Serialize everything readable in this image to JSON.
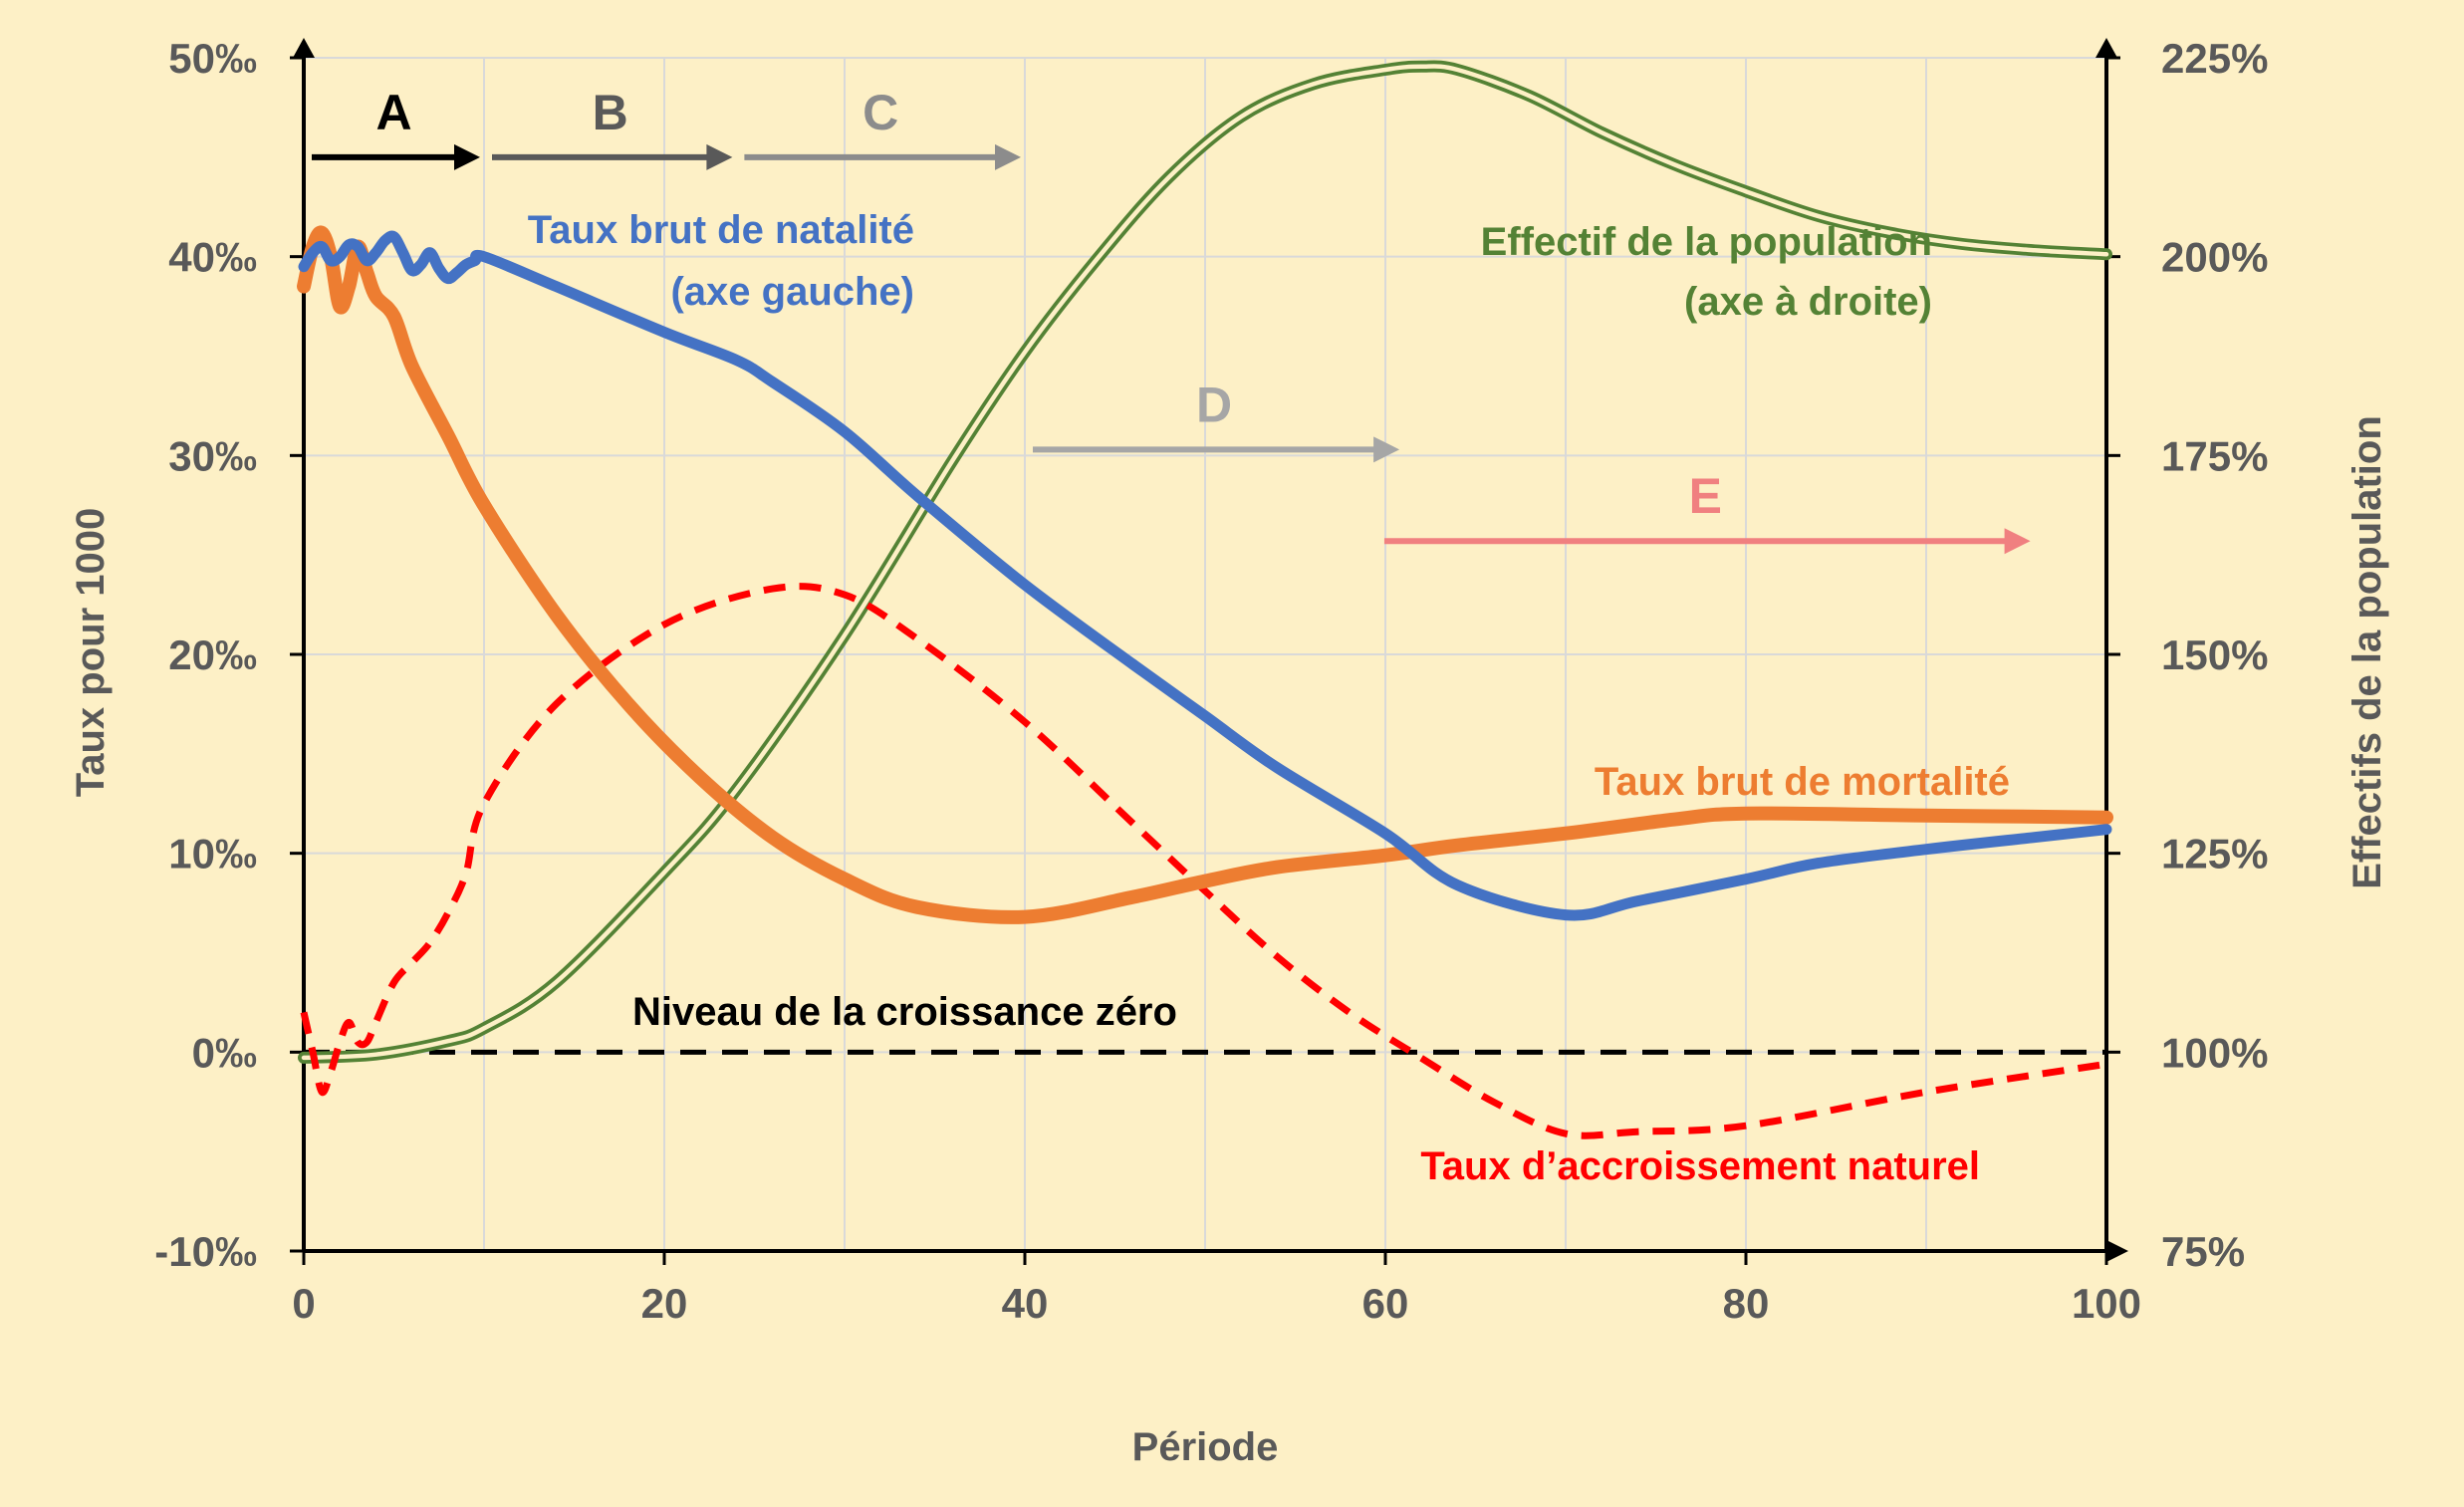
{
  "chart_data": {
    "type": "line",
    "xlabel": "Période",
    "ylabel_left": "Taux pour 1000",
    "ylabel_right": "Effectifs de la population",
    "xlim": [
      0,
      100
    ],
    "ylim_left": [
      -10,
      50
    ],
    "ylim_right": [
      75,
      225
    ],
    "x_ticks": [
      "0",
      "20",
      "40",
      "60",
      "80",
      "100"
    ],
    "y_ticks_left": [
      "-10‰",
      "0‰",
      "10‰",
      "20‰",
      "30‰",
      "40‰",
      "50‰"
    ],
    "y_ticks_right": [
      "75%",
      "100%",
      "125%",
      "150%",
      "175%",
      "200%",
      "225%"
    ],
    "grid": true,
    "colors": {
      "background": "#fdf0c6",
      "natalite": "#4472c4",
      "mortalite": "#ed7d31",
      "accroissement": "#ff0000",
      "population": "#548235",
      "axis_text": "#595959",
      "grid": "#d9d9d9"
    },
    "series": [
      {
        "key": "natalite",
        "name": "Taux brut de natalité",
        "name_line2": "(axe gauche)",
        "axis": "left",
        "style": "solid",
        "x": [
          0,
          0.5,
          1,
          1.5,
          2,
          2.5,
          3,
          3.5,
          4,
          4.5,
          5,
          5.5,
          6,
          6.5,
          7,
          7.5,
          8,
          8.5,
          9,
          9.5,
          10,
          14,
          20,
          24,
          26,
          30,
          34,
          40,
          46,
          50,
          54,
          60,
          64,
          70,
          74,
          80,
          84,
          90,
          96,
          100
        ],
        "y": [
          39.5,
          40.2,
          40.5,
          39.8,
          40.0,
          40.6,
          40.5,
          39.8,
          40.2,
          40.8,
          41.0,
          40.2,
          39.3,
          39.6,
          40.2,
          39.4,
          38.9,
          39.2,
          39.6,
          39.8,
          40.0,
          38.5,
          36.2,
          34.8,
          33.7,
          31.2,
          28.0,
          23.5,
          19.5,
          16.9,
          14.3,
          11.0,
          8.4,
          6.9,
          7.6,
          8.7,
          9.5,
          10.2,
          10.8,
          11.2
        ]
      },
      {
        "key": "mortalite",
        "name": "Taux brut de mortalité",
        "axis": "left",
        "style": "solid",
        "x": [
          0,
          0.5,
          1,
          1.5,
          2,
          2.5,
          3,
          3.5,
          4,
          5,
          6,
          8,
          10,
          14,
          18,
          22,
          26,
          30,
          34,
          40,
          46,
          50,
          54,
          60,
          64,
          70,
          76,
          80,
          90,
          100
        ],
        "y": [
          38.5,
          40.5,
          41.2,
          40.0,
          37.5,
          38.5,
          40.5,
          39.2,
          38.0,
          37.0,
          34.5,
          31.0,
          27.5,
          22.0,
          17.5,
          13.8,
          10.8,
          8.7,
          7.3,
          6.8,
          7.8,
          8.6,
          9.3,
          9.9,
          10.4,
          11.0,
          11.7,
          12.0,
          11.9,
          11.8
        ]
      },
      {
        "key": "accroissement",
        "name": "Taux d’accroissement naturel",
        "axis": "left",
        "style": "dashed",
        "x": [
          0,
          0.5,
          1,
          1.5,
          2,
          2.5,
          3,
          3.5,
          4,
          5,
          6,
          7,
          8,
          9,
          10,
          14,
          20,
          26,
          30,
          34,
          40,
          46,
          50,
          54,
          58,
          62,
          66,
          70,
          74,
          80,
          90,
          100
        ],
        "y": [
          2.0,
          0.0,
          -2.0,
          -1.0,
          0.5,
          1.5,
          0.5,
          0.5,
          1.5,
          3.5,
          4.5,
          5.5,
          7.0,
          9.0,
          12.5,
          17.5,
          21.5,
          23.3,
          23.0,
          20.8,
          16.6,
          11.5,
          8.1,
          4.8,
          2.0,
          -0.3,
          -2.5,
          -4.1,
          -4.0,
          -3.7,
          -2.0,
          -0.6
        ]
      },
      {
        "key": "population",
        "name": "Effectif de la population",
        "name_line2": "(axe à droite)",
        "axis": "right",
        "style": "double",
        "x": [
          0,
          4,
          8,
          10,
          14,
          20,
          24,
          30,
          36,
          40,
          44,
          48,
          52,
          56,
          60,
          62,
          64,
          68,
          72,
          76,
          80,
          84,
          88,
          92,
          96,
          100
        ],
        "y": [
          99.3,
          99.7,
          101.4,
          103.0,
          108.8,
          122.6,
          133.0,
          152.4,
          174.4,
          188.0,
          199.7,
          210.0,
          217.6,
          221.7,
          223.5,
          223.9,
          223.5,
          220.2,
          215.6,
          211.6,
          208.2,
          205.1,
          203.0,
          201.6,
          200.8,
          200.3
        ]
      },
      {
        "key": "zero",
        "name": "Niveau de la croissance zéro",
        "axis": "left",
        "style": "dashed",
        "x": [
          0,
          100
        ],
        "y": [
          0,
          0
        ]
      }
    ],
    "phases": [
      {
        "label": "A",
        "from": 0,
        "to": 10,
        "level": 45,
        "color": "#000000"
      },
      {
        "label": "B",
        "from": 10,
        "to": 24,
        "level": 45,
        "color": "#595959"
      },
      {
        "label": "C",
        "from": 24,
        "to": 40,
        "level": 45,
        "color": "#8c8c8c"
      },
      {
        "label": "D",
        "from": 40,
        "to": 61,
        "level": 30.3,
        "color": "#a6a6a6"
      },
      {
        "label": "E",
        "from": 59.5,
        "to": 96,
        "level": 25.7,
        "color": "#f08080"
      }
    ]
  }
}
